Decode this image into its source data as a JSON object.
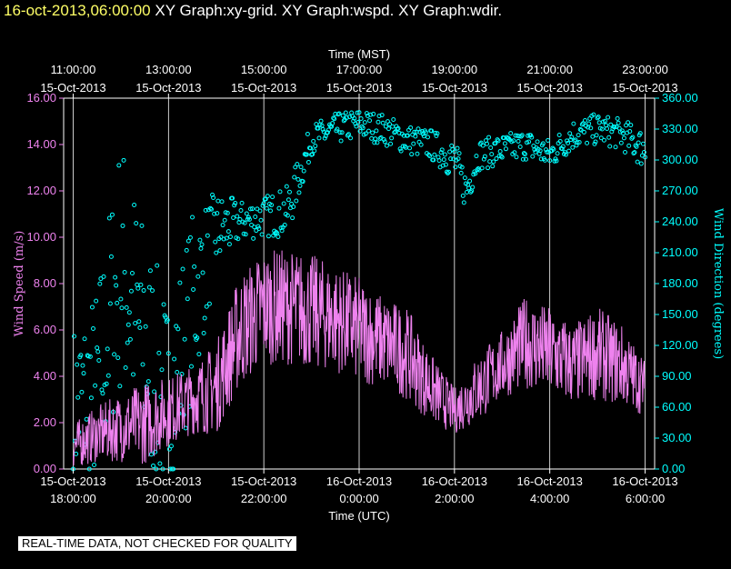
{
  "header": {
    "timestamp": "16-oct-2013,06:00:00",
    "graph_titles": [
      "XY Graph:xy-grid.",
      "XY Graph:wspd.",
      "XY Graph:wdir."
    ]
  },
  "disclaimer": "REAL-TIME DATA, NOT CHECKED FOR QUALITY",
  "colors": {
    "wspd": "#ee82ee",
    "wdir": "#00ffff",
    "grid": "#ffffff",
    "background": "#000000"
  },
  "chart_data": {
    "type": "line",
    "grid": true,
    "top_axis": {
      "label": "Time (MST)",
      "hours": [
        11,
        13,
        15,
        17,
        19,
        21,
        23
      ],
      "ticks": [
        {
          "time": "11:00:00",
          "date": "15-Oct-2013"
        },
        {
          "time": "13:00:00",
          "date": "15-Oct-2013"
        },
        {
          "time": "15:00:00",
          "date": "15-Oct-2013"
        },
        {
          "time": "17:00:00",
          "date": "15-Oct-2013"
        },
        {
          "time": "19:00:00",
          "date": "15-Oct-2013"
        },
        {
          "time": "21:00:00",
          "date": "15-Oct-2013"
        },
        {
          "time": "23:00:00",
          "date": "15-Oct-2013"
        }
      ]
    },
    "bottom_axis": {
      "label": "Time (UTC)",
      "ticks": [
        {
          "date": "15-Oct-2013",
          "time": "18:00:00"
        },
        {
          "date": "15-Oct-2013",
          "time": "20:00:00"
        },
        {
          "date": "15-Oct-2013",
          "time": "22:00:00"
        },
        {
          "date": "16-Oct-2013",
          "time": "0:00:00"
        },
        {
          "date": "16-Oct-2013",
          "time": "2:00:00"
        },
        {
          "date": "16-Oct-2013",
          "time": "4:00:00"
        },
        {
          "date": "16-Oct-2013",
          "time": "6:00:00"
        }
      ]
    },
    "xlim_mst_hours": [
      10.8,
      23.2
    ],
    "left_axis": {
      "label": "Wind Speed (m/s)",
      "ylim": [
        0,
        16
      ],
      "ticks": [
        "0.00",
        "2.00",
        "4.00",
        "6.00",
        "8.00",
        "10.00",
        "12.00",
        "14.00",
        "16.00"
      ]
    },
    "right_axis": {
      "label": "Wind Direction (degrees)",
      "ylim": [
        0,
        360
      ],
      "ticks": [
        "0.00",
        "30.00",
        "60.00",
        "90.00",
        "120.00",
        "150.00",
        "180.00",
        "210.00",
        "240.00",
        "270.00",
        "300.00",
        "330.00",
        "360.00"
      ]
    },
    "series": [
      {
        "name": "Wind Speed (m/s)",
        "axis": "left",
        "style": "line",
        "x_mst": [
          11.0,
          11.5,
          12.0,
          12.5,
          13.0,
          13.5,
          14.0,
          14.5,
          15.0,
          15.5,
          16.0,
          16.5,
          17.0,
          17.5,
          18.0,
          18.5,
          19.0,
          19.5,
          20.0,
          20.5,
          21.0,
          21.5,
          22.0,
          22.5,
          23.0
        ],
        "mean": [
          1.0,
          1.5,
          1.8,
          2.0,
          2.5,
          3.0,
          3.5,
          6.0,
          7.0,
          7.0,
          6.8,
          6.5,
          6.0,
          5.5,
          5.0,
          3.5,
          2.5,
          3.5,
          4.5,
          5.5,
          5.0,
          4.5,
          5.0,
          4.5,
          3.5
        ],
        "spread": [
          1.0,
          1.2,
          1.5,
          1.8,
          1.5,
          1.5,
          2.0,
          2.5,
          2.5,
          2.5,
          2.5,
          2.3,
          2.3,
          2.0,
          2.0,
          1.5,
          1.0,
          1.5,
          1.5,
          2.0,
          2.0,
          1.8,
          2.0,
          1.8,
          1.2
        ]
      },
      {
        "name": "Wind Direction (degrees)",
        "axis": "right",
        "style": "markers",
        "x_mst": [
          11.0,
          11.5,
          12.0,
          12.5,
          13.0,
          13.5,
          14.0,
          14.5,
          15.0,
          15.5,
          16.0,
          16.5,
          17.0,
          17.5,
          18.0,
          18.5,
          19.0,
          19.25,
          19.5,
          20.0,
          20.5,
          21.0,
          21.5,
          22.0,
          22.5,
          23.0
        ],
        "mean": [
          60,
          80,
          200,
          120,
          60,
          160,
          230,
          240,
          245,
          250,
          320,
          330,
          335,
          330,
          320,
          315,
          300,
          270,
          305,
          310,
          315,
          305,
          325,
          330,
          325,
          310
        ],
        "spread": [
          80,
          100,
          130,
          120,
          100,
          90,
          40,
          20,
          20,
          25,
          15,
          15,
          15,
          15,
          15,
          15,
          20,
          20,
          15,
          15,
          15,
          15,
          15,
          15,
          15,
          20
        ]
      }
    ]
  }
}
